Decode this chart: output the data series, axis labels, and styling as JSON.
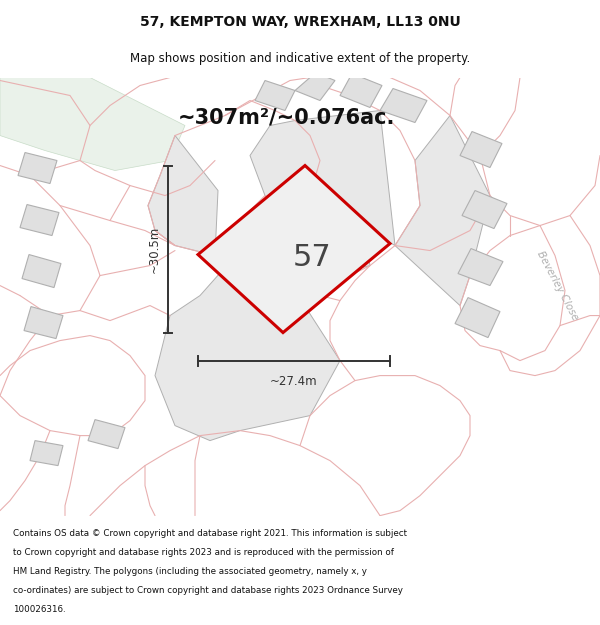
{
  "title_line1": "57, KEMPTON WAY, WREXHAM, LL13 0NU",
  "title_line2": "Map shows position and indicative extent of the property.",
  "area_text": "~307m²/~0.076ac.",
  "plot_number": "57",
  "dim_width": "~27.4m",
  "dim_height": "~30.5m",
  "road_label": "Beverley Close",
  "footer_lines": [
    "Contains OS data © Crown copyright and database right 2021. This information is subject",
    "to Crown copyright and database rights 2023 and is reproduced with the permission of",
    "HM Land Registry. The polygons (including the associated geometry, namely x, y",
    "co-ordinates) are subject to Crown copyright and database rights 2023 Ordnance Survey",
    "100026316."
  ],
  "map_bg": "#f7f7f7",
  "plot_fill": "#f0f0f0",
  "plot_edge": "#cc0000",
  "building_fill": "#e0e0e0",
  "building_edge": "#b0b0b0",
  "road_line_color": "#e8b0b0",
  "green_fill": "#eaf2ea",
  "green_edge": "#c8dcc8",
  "dim_color": "#333333",
  "beverley_color": "#b0b0b0",
  "title_fontsize": 10,
  "subtitle_fontsize": 8.5,
  "area_fontsize": 15,
  "plot_num_fontsize": 22,
  "footer_fontsize": 6.3
}
